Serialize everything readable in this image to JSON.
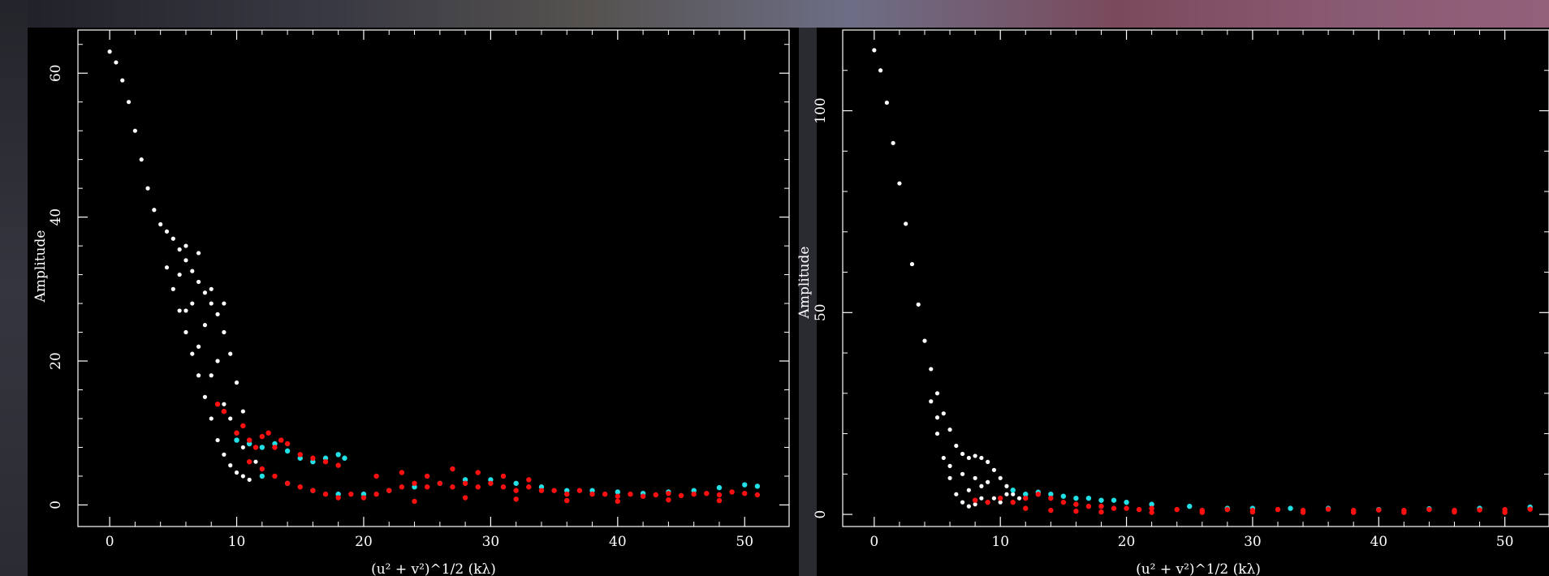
{
  "chart_data": [
    {
      "type": "scatter",
      "title": "",
      "xlabel": "(u² + v²)^1/2 (kλ)",
      "ylabel": "Amplitude",
      "xlim": [
        -2.5,
        53.5
      ],
      "ylim": [
        -3,
        66
      ],
      "xticks": [
        0,
        10,
        20,
        30,
        40,
        50
      ],
      "yticks": [
        0,
        20,
        40,
        60
      ],
      "grid": false,
      "colors": {
        "background": "#000000",
        "white": "#ffffff",
        "cyan": "#22e0e6",
        "red": "#ff1010"
      },
      "series": [
        {
          "color": "white",
          "points": [
            [
              0,
              63
            ],
            [
              0.5,
              61.5
            ],
            [
              1,
              59
            ],
            [
              1.5,
              56
            ],
            [
              2,
              52
            ],
            [
              2.5,
              48
            ],
            [
              3,
              44
            ],
            [
              3.5,
              41
            ],
            [
              4,
              39
            ],
            [
              4.5,
              38
            ],
            [
              5,
              37
            ],
            [
              5.5,
              35.5
            ],
            [
              6,
              34
            ],
            [
              6.5,
              32.5
            ],
            [
              7,
              31
            ],
            [
              7.5,
              29.5
            ],
            [
              8,
              28
            ],
            [
              8.5,
              26.5
            ],
            [
              9,
              24
            ],
            [
              9.5,
              21
            ],
            [
              10,
              17
            ],
            [
              10.5,
              13
            ],
            [
              11,
              9
            ],
            [
              11.5,
              6
            ],
            [
              12,
              4
            ],
            [
              4.5,
              33
            ],
            [
              5,
              30
            ],
            [
              5.5,
              27
            ],
            [
              6,
              24
            ],
            [
              6.5,
              21
            ],
            [
              7,
              18
            ],
            [
              7.5,
              15
            ],
            [
              8,
              12
            ],
            [
              8.5,
              9
            ],
            [
              9,
              7
            ],
            [
              9.5,
              5.5
            ],
            [
              10,
              4.5
            ],
            [
              10.5,
              4
            ],
            [
              11,
              3.5
            ],
            [
              5.5,
              32
            ],
            [
              6.5,
              28
            ],
            [
              7.5,
              25
            ],
            [
              8.5,
              20
            ],
            [
              7,
              22
            ],
            [
              6,
              27
            ],
            [
              8,
              18
            ],
            [
              9,
              14
            ],
            [
              9.5,
              12
            ],
            [
              10.5,
              8
            ],
            [
              8,
              30
            ],
            [
              9,
              28
            ],
            [
              7,
              35
            ],
            [
              6,
              36
            ]
          ]
        },
        {
          "color": "cyan",
          "points": [
            [
              10,
              9
            ],
            [
              11,
              8.5
            ],
            [
              12,
              8
            ],
            [
              13,
              8.5
            ],
            [
              14,
              7.5
            ],
            [
              15,
              6.5
            ],
            [
              16,
              6
            ],
            [
              17,
              6.5
            ],
            [
              18,
              7
            ],
            [
              18.5,
              6.5
            ],
            [
              12,
              4
            ],
            [
              14,
              3
            ],
            [
              16,
              2
            ],
            [
              18,
              1.5
            ],
            [
              20,
              1.5
            ],
            [
              22,
              2
            ],
            [
              24,
              2.5
            ],
            [
              26,
              3
            ],
            [
              28,
              3.5
            ],
            [
              30,
              3.5
            ],
            [
              32,
              3
            ],
            [
              34,
              2.5
            ],
            [
              36,
              2
            ],
            [
              38,
              2
            ],
            [
              40,
              1.8
            ],
            [
              42,
              1.6
            ],
            [
              44,
              1.8
            ],
            [
              46,
              2
            ],
            [
              48,
              2.4
            ],
            [
              50,
              2.8
            ],
            [
              51,
              2.6
            ]
          ]
        },
        {
          "color": "red",
          "points": [
            [
              8.5,
              14
            ],
            [
              9,
              13
            ],
            [
              10,
              10
            ],
            [
              10.5,
              11
            ],
            [
              11,
              9
            ],
            [
              11.5,
              8
            ],
            [
              12,
              9.5
            ],
            [
              12.5,
              10
            ],
            [
              13,
              8
            ],
            [
              13.5,
              9
            ],
            [
              14,
              8.5
            ],
            [
              15,
              7
            ],
            [
              16,
              6.5
            ],
            [
              17,
              6
            ],
            [
              18,
              5.5
            ],
            [
              11,
              6
            ],
            [
              12,
              5
            ],
            [
              13,
              4
            ],
            [
              14,
              3
            ],
            [
              15,
              2.5
            ],
            [
              16,
              2
            ],
            [
              17,
              1.5
            ],
            [
              18,
              1
            ],
            [
              19,
              1.5
            ],
            [
              20,
              1
            ],
            [
              21,
              1.5
            ],
            [
              22,
              2
            ],
            [
              23,
              2.5
            ],
            [
              24,
              3
            ],
            [
              25,
              2.5
            ],
            [
              26,
              3
            ],
            [
              27,
              2.5
            ],
            [
              28,
              3
            ],
            [
              29,
              2.5
            ],
            [
              30,
              3
            ],
            [
              31,
              2.5
            ],
            [
              32,
              2
            ],
            [
              33,
              2.5
            ],
            [
              34,
              2
            ],
            [
              35,
              2
            ],
            [
              36,
              1.5
            ],
            [
              37,
              2
            ],
            [
              38,
              1.5
            ],
            [
              39,
              1.5
            ],
            [
              40,
              1.2
            ],
            [
              41,
              1.5
            ],
            [
              42,
              1.2
            ],
            [
              43,
              1.4
            ],
            [
              44,
              1.6
            ],
            [
              45,
              1.3
            ],
            [
              46,
              1.5
            ],
            [
              47,
              1.6
            ],
            [
              48,
              1.4
            ],
            [
              49,
              1.8
            ],
            [
              50,
              1.6
            ],
            [
              51,
              1.4
            ],
            [
              21,
              4
            ],
            [
              23,
              4.5
            ],
            [
              25,
              4
            ],
            [
              27,
              5
            ],
            [
              29,
              4.5
            ],
            [
              31,
              4
            ],
            [
              33,
              3.5
            ],
            [
              24,
              0.5
            ],
            [
              28,
              1
            ],
            [
              32,
              0.8
            ],
            [
              36,
              0.6
            ],
            [
              40,
              0.5
            ],
            [
              44,
              0.7
            ],
            [
              48,
              0.6
            ]
          ]
        }
      ]
    },
    {
      "type": "scatter",
      "title": "",
      "xlabel": "(u² + v²)^1/2 (kλ)",
      "ylabel": "Amplitude",
      "xlim": [
        -2.5,
        53.5
      ],
      "ylim": [
        -3,
        120
      ],
      "xticks": [
        0,
        10,
        20,
        30,
        40,
        50
      ],
      "yticks": [
        0,
        50,
        100
      ],
      "grid": false,
      "colors": {
        "background": "#000000",
        "white": "#ffffff",
        "cyan": "#22e0e6",
        "red": "#ff1010"
      },
      "series": [
        {
          "color": "white",
          "points": [
            [
              0,
              115
            ],
            [
              0.5,
              110
            ],
            [
              1,
              102
            ],
            [
              1.5,
              92
            ],
            [
              2,
              82
            ],
            [
              2.5,
              72
            ],
            [
              3,
              62
            ],
            [
              3.5,
              52
            ],
            [
              4,
              43
            ],
            [
              4.5,
              36
            ],
            [
              5,
              30
            ],
            [
              5.5,
              25
            ],
            [
              6,
              21
            ],
            [
              6.5,
              17
            ],
            [
              7,
              15
            ],
            [
              7.5,
              14
            ],
            [
              8,
              14.5
            ],
            [
              8.5,
              14
            ],
            [
              9,
              13
            ],
            [
              9.5,
              11
            ],
            [
              10,
              9
            ],
            [
              10.5,
              7
            ],
            [
              11,
              5
            ],
            [
              11.5,
              4
            ],
            [
              5,
              20
            ],
            [
              5.5,
              14
            ],
            [
              6,
              9
            ],
            [
              6.5,
              5
            ],
            [
              7,
              3
            ],
            [
              7.5,
              2
            ],
            [
              8,
              2.5
            ],
            [
              8.5,
              4
            ],
            [
              9,
              3
            ],
            [
              9.5,
              4
            ],
            [
              10,
              3
            ],
            [
              6,
              12
            ],
            [
              7,
              10
            ],
            [
              8,
              9
            ],
            [
              9,
              8
            ],
            [
              7.5,
              6
            ],
            [
              8.5,
              7
            ],
            [
              10.5,
              5
            ],
            [
              4.5,
              28
            ],
            [
              5,
              24
            ]
          ]
        },
        {
          "color": "cyan",
          "points": [
            [
              11,
              6
            ],
            [
              12,
              5
            ],
            [
              13,
              5.5
            ],
            [
              14,
              5
            ],
            [
              15,
              4.5
            ],
            [
              16,
              4
            ],
            [
              17,
              4
            ],
            [
              18,
              3.5
            ],
            [
              19,
              3.5
            ],
            [
              20,
              3
            ],
            [
              22,
              2.5
            ],
            [
              25,
              2
            ],
            [
              28,
              1.5
            ],
            [
              30,
              1.5
            ],
            [
              33,
              1.5
            ],
            [
              36,
              1.5
            ],
            [
              40,
              1.2
            ],
            [
              44,
              1.4
            ],
            [
              48,
              1.5
            ],
            [
              52,
              1.8
            ]
          ]
        },
        {
          "color": "red",
          "points": [
            [
              8,
              3.5
            ],
            [
              9,
              3
            ],
            [
              10,
              4
            ],
            [
              11,
              3
            ],
            [
              12,
              4
            ],
            [
              13,
              5
            ],
            [
              14,
              4
            ],
            [
              15,
              3
            ],
            [
              16,
              2.5
            ],
            [
              17,
              2
            ],
            [
              18,
              2
            ],
            [
              19,
              1.5
            ],
            [
              20,
              1.5
            ],
            [
              21,
              1.2
            ],
            [
              22,
              1.5
            ],
            [
              24,
              1.2
            ],
            [
              26,
              1
            ],
            [
              28,
              1.2
            ],
            [
              30,
              1
            ],
            [
              32,
              1.2
            ],
            [
              34,
              1
            ],
            [
              36,
              1.3
            ],
            [
              38,
              1
            ],
            [
              40,
              1.1
            ],
            [
              42,
              1
            ],
            [
              44,
              1.2
            ],
            [
              46,
              1
            ],
            [
              48,
              1.1
            ],
            [
              50,
              1.2
            ],
            [
              52,
              1.3
            ],
            [
              12,
              1.5
            ],
            [
              14,
              1
            ],
            [
              16,
              0.8
            ],
            [
              18,
              0.6
            ],
            [
              22,
              0.5
            ],
            [
              26,
              0.5
            ],
            [
              30,
              0.6
            ],
            [
              34,
              0.5
            ],
            [
              38,
              0.5
            ],
            [
              42,
              0.5
            ],
            [
              46,
              0.6
            ],
            [
              50,
              0.5
            ]
          ]
        }
      ]
    }
  ]
}
